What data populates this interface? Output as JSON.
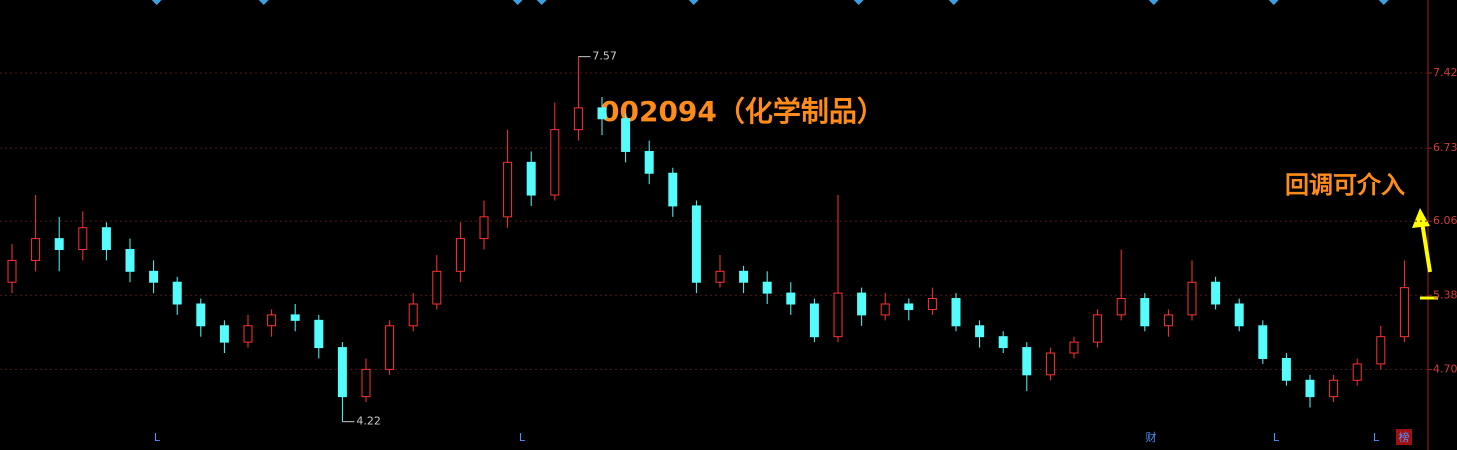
{
  "chart_data": {
    "type": "candlestick",
    "title": "002094（化学制品）",
    "annotation": "回调可介入",
    "candles": [
      [
        5.5,
        5.85,
        5.4,
        5.7
      ],
      [
        5.7,
        6.3,
        5.6,
        5.9
      ],
      [
        5.9,
        6.1,
        5.6,
        5.8
      ],
      [
        5.8,
        6.15,
        5.7,
        6.0
      ],
      [
        6.0,
        6.05,
        5.7,
        5.8
      ],
      [
        5.8,
        5.9,
        5.5,
        5.6
      ],
      [
        5.6,
        5.7,
        5.4,
        5.5
      ],
      [
        5.5,
        5.55,
        5.2,
        5.3
      ],
      [
        5.3,
        5.35,
        5.0,
        5.1
      ],
      [
        5.1,
        5.15,
        4.85,
        4.95
      ],
      [
        4.95,
        5.2,
        4.9,
        5.1
      ],
      [
        5.1,
        5.25,
        5.0,
        5.2
      ],
      [
        5.2,
        5.3,
        5.05,
        5.15
      ],
      [
        5.15,
        5.2,
        4.8,
        4.9
      ],
      [
        4.9,
        4.95,
        4.22,
        4.45
      ],
      [
        4.45,
        4.8,
        4.4,
        4.7
      ],
      [
        4.7,
        5.15,
        4.65,
        5.1
      ],
      [
        5.1,
        5.4,
        5.05,
        5.3
      ],
      [
        5.3,
        5.75,
        5.25,
        5.6
      ],
      [
        5.6,
        6.05,
        5.5,
        5.9
      ],
      [
        5.9,
        6.25,
        5.8,
        6.1
      ],
      [
        6.1,
        6.9,
        6.0,
        6.6
      ],
      [
        6.6,
        6.7,
        6.2,
        6.3
      ],
      [
        6.3,
        7.15,
        6.25,
        6.9
      ],
      [
        6.9,
        7.57,
        6.8,
        7.1
      ],
      [
        7.1,
        7.2,
        6.85,
        7.0
      ],
      [
        7.0,
        7.05,
        6.6,
        6.7
      ],
      [
        6.7,
        6.8,
        6.4,
        6.5
      ],
      [
        6.5,
        6.55,
        6.1,
        6.2
      ],
      [
        6.2,
        6.25,
        5.4,
        5.5
      ],
      [
        5.5,
        5.75,
        5.45,
        5.6
      ],
      [
        5.6,
        5.65,
        5.4,
        5.5
      ],
      [
        5.5,
        5.6,
        5.3,
        5.4
      ],
      [
        5.4,
        5.5,
        5.2,
        5.3
      ],
      [
        5.3,
        5.35,
        4.95,
        5.0
      ],
      [
        5.0,
        6.3,
        4.95,
        5.4
      ],
      [
        5.4,
        5.45,
        5.1,
        5.2
      ],
      [
        5.2,
        5.4,
        5.15,
        5.3
      ],
      [
        5.3,
        5.35,
        5.15,
        5.25
      ],
      [
        5.25,
        5.45,
        5.2,
        5.35
      ],
      [
        5.35,
        5.4,
        5.05,
        5.1
      ],
      [
        5.1,
        5.15,
        4.9,
        5.0
      ],
      [
        5.0,
        5.05,
        4.85,
        4.9
      ],
      [
        4.9,
        4.95,
        4.5,
        4.65
      ],
      [
        4.65,
        4.9,
        4.6,
        4.85
      ],
      [
        4.85,
        5.0,
        4.8,
        4.95
      ],
      [
        4.95,
        5.25,
        4.9,
        5.2
      ],
      [
        5.2,
        5.8,
        5.15,
        5.35
      ],
      [
        5.35,
        5.4,
        5.05,
        5.1
      ],
      [
        5.1,
        5.25,
        5.0,
        5.2
      ],
      [
        5.2,
        5.7,
        5.15,
        5.5
      ],
      [
        5.5,
        5.55,
        5.25,
        5.3
      ],
      [
        5.3,
        5.35,
        5.05,
        5.1
      ],
      [
        5.1,
        5.15,
        4.75,
        4.8
      ],
      [
        4.8,
        4.85,
        4.55,
        4.6
      ],
      [
        4.6,
        4.65,
        4.35,
        4.45
      ],
      [
        4.45,
        4.65,
        4.4,
        4.6
      ],
      [
        4.6,
        4.8,
        4.55,
        4.75
      ],
      [
        4.75,
        5.1,
        4.7,
        5.0
      ],
      [
        5.0,
        5.7,
        4.95,
        5.45
      ]
    ],
    "up_color": "#ff3232",
    "down_color": "#54fcfc",
    "ylim": [
      3.96,
      8.09
    ],
    "yticks": [
      {
        "value": 4.7,
        "label": "4.70"
      },
      5.38,
      6.06,
      6.73,
      7.42
    ],
    "grid": true,
    "bottom_markers": [
      "L",
      "L",
      "财",
      "L",
      "L",
      "榜"
    ]
  }
}
